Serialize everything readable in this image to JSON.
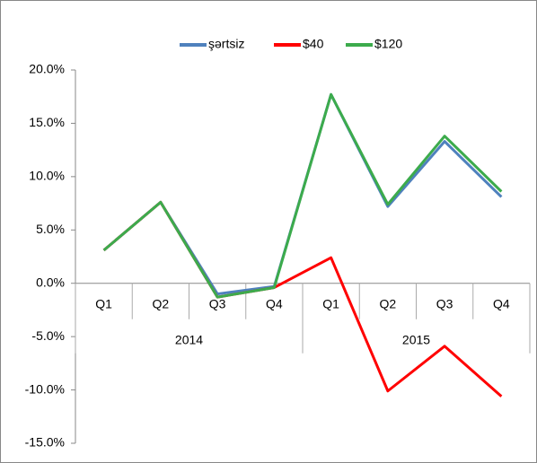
{
  "chart_data": {
    "type": "line",
    "categories": [
      "Q1",
      "Q2",
      "Q3",
      "Q4",
      "Q1",
      "Q2",
      "Q3",
      "Q4"
    ],
    "category_groups": [
      "2014",
      "2015"
    ],
    "series": [
      {
        "name": "şərtsiz",
        "color": "#4f81bd",
        "values": [
          3.1,
          7.6,
          -1.0,
          -0.3,
          17.7,
          7.2,
          13.3,
          8.1
        ]
      },
      {
        "name": "$40",
        "color": "#ff0000",
        "values": [
          3.1,
          7.6,
          -1.3,
          -0.4,
          2.4,
          -10.1,
          -5.9,
          -10.6
        ]
      },
      {
        "name": "$120",
        "color": "#3cab4c",
        "values": [
          3.1,
          7.6,
          -1.3,
          -0.4,
          17.7,
          7.4,
          13.8,
          8.6
        ]
      }
    ],
    "ylim": [
      -15,
      20
    ],
    "yticks": [
      {
        "value": -15,
        "label": "-15.0%"
      },
      {
        "value": -10,
        "label": "-10.0%"
      },
      {
        "value": -5,
        "label": "-5.0%"
      },
      {
        "value": 0,
        "label": "0.0%"
      },
      {
        "value": 5,
        "label": "5.0%"
      },
      {
        "value": 10,
        "label": "10.0%"
      },
      {
        "value": 15,
        "label": "15.0%"
      },
      {
        "value": 20,
        "label": "20.0%"
      }
    ],
    "legend": "top"
  }
}
